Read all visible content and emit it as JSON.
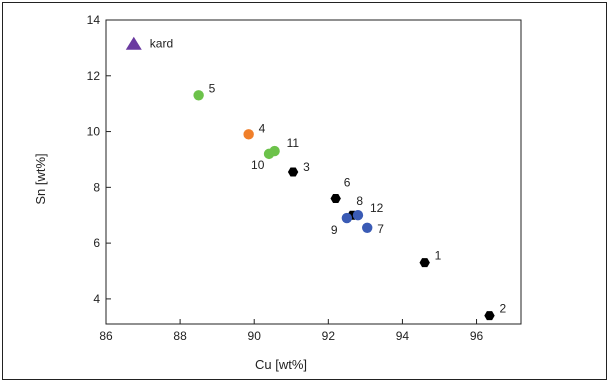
{
  "chart_data": {
    "type": "scatter",
    "title": "",
    "xlabel": "Cu [wt%]",
    "ylabel": "Sn [wt%]",
    "xlim": [
      86,
      97.2
    ],
    "ylim": [
      3.1,
      14
    ],
    "xticks": [
      86,
      88,
      90,
      92,
      94,
      96
    ],
    "yticks": [
      4,
      6,
      8,
      10,
      12,
      14
    ],
    "grid": false,
    "colors": {
      "black": "#000000",
      "green": "#6cc24a",
      "orange": "#f07f2a",
      "blue": "#3a5bb5",
      "purple": "#6a3aa0"
    },
    "points": [
      {
        "label": "1",
        "x": 94.6,
        "y": 5.3,
        "color": "black"
      },
      {
        "label": "2",
        "x": 96.35,
        "y": 3.4,
        "color": "black"
      },
      {
        "label": "3",
        "x": 91.05,
        "y": 8.55,
        "color": "black"
      },
      {
        "label": "4",
        "x": 89.85,
        "y": 9.9,
        "color": "orange"
      },
      {
        "label": "5",
        "x": 88.5,
        "y": 11.3,
        "color": "green"
      },
      {
        "label": "6",
        "x": 92.2,
        "y": 7.6,
        "color": "black"
      },
      {
        "label": "7",
        "x": 93.05,
        "y": 6.55,
        "color": "blue"
      },
      {
        "label": "8",
        "x": 92.65,
        "y": 7.0,
        "color": "black"
      },
      {
        "label": "9",
        "x": 92.5,
        "y": 6.9,
        "color": "blue"
      },
      {
        "label": "10",
        "x": 90.4,
        "y": 9.2,
        "color": "green"
      },
      {
        "label": "11",
        "x": 90.55,
        "y": 9.3,
        "color": "green"
      },
      {
        "label": "12",
        "x": 92.8,
        "y": 7.0,
        "color": "blue"
      }
    ],
    "legend": {
      "label": "kard",
      "marker": "triangle",
      "color": "purple",
      "x": 86.75,
      "y": 13.15
    }
  }
}
